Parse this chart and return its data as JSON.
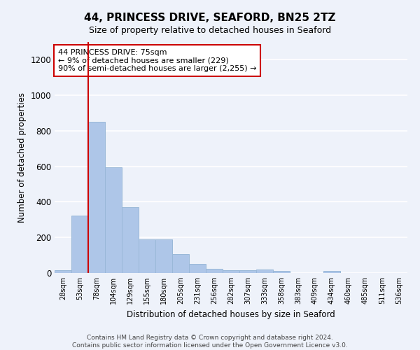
{
  "title": "44, PRINCESS DRIVE, SEAFORD, BN25 2TZ",
  "subtitle": "Size of property relative to detached houses in Seaford",
  "xlabel": "Distribution of detached houses by size in Seaford",
  "ylabel": "Number of detached properties",
  "bar_color": "#aec6e8",
  "bar_edge_color": "#9ab8d8",
  "background_color": "#eef2fa",
  "grid_color": "#ffffff",
  "categories": [
    "28sqm",
    "53sqm",
    "78sqm",
    "104sqm",
    "129sqm",
    "155sqm",
    "180sqm",
    "205sqm",
    "231sqm",
    "256sqm",
    "282sqm",
    "307sqm",
    "333sqm",
    "358sqm",
    "383sqm",
    "409sqm",
    "434sqm",
    "460sqm",
    "485sqm",
    "511sqm",
    "536sqm"
  ],
  "values": [
    15,
    325,
    850,
    595,
    370,
    190,
    190,
    105,
    50,
    25,
    15,
    15,
    20,
    10,
    0,
    0,
    10,
    0,
    0,
    0,
    0
  ],
  "annotation_line1": "44 PRINCESS DRIVE: 75sqm",
  "annotation_line2": "← 9% of detached houses are smaller (229)",
  "annotation_line3": "90% of semi-detached houses are larger (2,255) →",
  "annotation_box_color": "#ffffff",
  "annotation_box_edgecolor": "#cc0000",
  "vline_color": "#cc0000",
  "vline_x": 1.5,
  "ylim": [
    0,
    1300
  ],
  "yticks": [
    0,
    200,
    400,
    600,
    800,
    1000,
    1200
  ],
  "footer_line1": "Contains HM Land Registry data © Crown copyright and database right 2024.",
  "footer_line2": "Contains public sector information licensed under the Open Government Licence v3.0."
}
